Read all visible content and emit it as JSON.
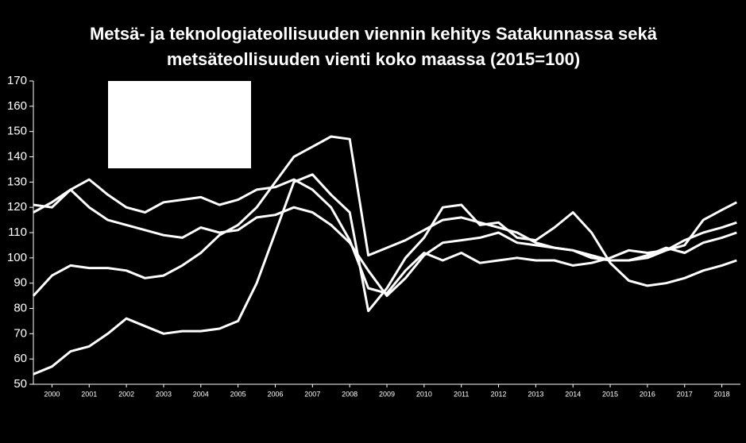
{
  "chart_data": {
    "type": "line",
    "title": [
      "Metsä- ja teknologiateollisuuden viennin kehitys Satakunnassa sekä",
      "metsäteollisuuden vienti koko maassa (2015=100)"
    ],
    "x": [
      2000,
      2000.5,
      2001,
      2001.5,
      2002,
      2002.5,
      2003,
      2003.5,
      2004,
      2004.5,
      2005,
      2005.5,
      2006,
      2006.5,
      2007,
      2007.5,
      2008,
      2008.5,
      2009,
      2009.5,
      2010,
      2010.5,
      2011,
      2011.5,
      2012,
      2012.5,
      2013,
      2013.5,
      2014,
      2014.5,
      2015,
      2015.5,
      2016,
      2016.5,
      2017,
      2017.5,
      2018,
      2018.5,
      2018.9
    ],
    "series": [
      {
        "color": "#ffffff",
        "values": [
          85,
          93,
          97,
          96,
          96,
          95,
          92,
          93,
          97,
          102,
          109,
          113,
          120,
          130,
          140,
          144,
          148,
          147,
          101,
          104,
          107,
          111,
          115,
          116,
          114,
          112,
          110,
          106,
          104,
          103,
          101,
          99,
          99,
          100,
          103,
          107,
          110,
          112,
          114
        ]
      },
      {
        "color": "#ffffff",
        "values": [
          54,
          57,
          63,
          65,
          70,
          76,
          73,
          70,
          71,
          71,
          72,
          75,
          90,
          110,
          130,
          133,
          125,
          118,
          79,
          88,
          100,
          108,
          120,
          121,
          113,
          114,
          108,
          107,
          112,
          118,
          110,
          98,
          91,
          89,
          90,
          92,
          95,
          97,
          99
        ]
      },
      {
        "color": "#ffffff",
        "values": [
          121,
          120,
          127,
          131,
          125,
          120,
          118,
          122,
          123,
          124,
          121,
          123,
          127,
          128,
          131,
          127,
          120,
          107,
          88,
          86,
          95,
          102,
          99,
          102,
          98,
          99,
          100,
          99,
          99,
          97,
          98,
          100,
          103,
          102,
          103,
          105,
          115,
          119,
          122
        ]
      },
      {
        "color": "#ffffff",
        "values": [
          118,
          122,
          127,
          120,
          115,
          113,
          111,
          109,
          108,
          112,
          110,
          111,
          116,
          117,
          120,
          118,
          113,
          106,
          95,
          85,
          92,
          101,
          106,
          107,
          108,
          110,
          106,
          105,
          104,
          103,
          100,
          99,
          99,
          101,
          104,
          102,
          106,
          108,
          110
        ]
      }
    ],
    "xlim": [
      2000,
      2019
    ],
    "xticks": [
      {
        "value": 2000.5,
        "label": "2000"
      },
      {
        "value": 2001.5,
        "label": "2001"
      },
      {
        "value": 2002.5,
        "label": "2002"
      },
      {
        "value": 2003.5,
        "label": "2003"
      },
      {
        "value": 2004.5,
        "label": "2004"
      },
      {
        "value": 2005.5,
        "label": "2005"
      },
      {
        "value": 2006.5,
        "label": "2006"
      },
      {
        "value": 2007.5,
        "label": "2007"
      },
      {
        "value": 2008.5,
        "label": "2008"
      },
      {
        "value": 2009.5,
        "label": "2009"
      },
      {
        "value": 2010.5,
        "label": "2010"
      },
      {
        "value": 2011.5,
        "label": "2011"
      },
      {
        "value": 2012.5,
        "label": "2012"
      },
      {
        "value": 2013.5,
        "label": "2013"
      },
      {
        "value": 2014.5,
        "label": "2014"
      },
      {
        "value": 2015.5,
        "label": "2015"
      },
      {
        "value": 2016.5,
        "label": "2016"
      },
      {
        "value": 2017.5,
        "label": "2017"
      },
      {
        "value": 2018.5,
        "label": "2018"
      }
    ],
    "ylim": [
      50,
      170
    ],
    "yticks": [
      50,
      60,
      70,
      80,
      90,
      100,
      110,
      120,
      130,
      140,
      150,
      160,
      170
    ]
  }
}
